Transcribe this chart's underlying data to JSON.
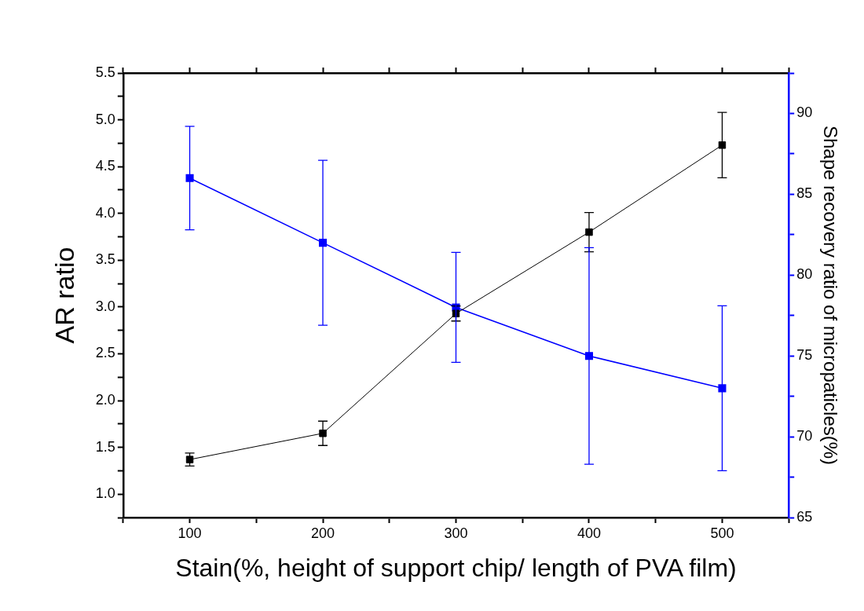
{
  "chart_data": {
    "type": "line",
    "xlabel": "Stain(%, height of support chip/ length of PVA film)",
    "ylabel": "AR ratio",
    "y2label": "Shape recovery ratio of micropaticles(%)",
    "x": [
      100,
      200,
      300,
      400,
      500
    ],
    "series": [
      {
        "color": "#000000",
        "values": [
          1.37,
          1.65,
          2.93,
          3.8,
          4.73
        ],
        "errors": [
          0.07,
          0.13,
          0.08,
          0.21,
          0.35
        ]
      },
      {
        "color": "#0000ff",
        "axis": "y2",
        "values": [
          86,
          82,
          78,
          75,
          73
        ],
        "errors": [
          3.2,
          5.1,
          3.4,
          6.7,
          5.1
        ]
      }
    ],
    "xlim": [
      50,
      550
    ],
    "xticks": [
      {
        "value": 50,
        "label": null
      },
      100,
      {
        "value": 150,
        "label": null
      },
      200,
      {
        "value": 250,
        "label": null
      },
      300,
      {
        "value": 350,
        "label": null
      },
      400,
      {
        "value": 450,
        "label": null
      },
      500,
      {
        "value": 550,
        "label": null
      }
    ],
    "ylim": [
      0.75,
      5.5
    ],
    "yticks": [
      {
        "value": 0.75,
        "label": null
      },
      {
        "value": 1.0,
        "label": "1.0"
      },
      {
        "value": 1.25,
        "label": null
      },
      {
        "value": 1.5,
        "label": "1.5"
      },
      {
        "value": 1.75,
        "label": null
      },
      {
        "value": 2.0,
        "label": "2.0"
      },
      {
        "value": 2.25,
        "label": null
      },
      {
        "value": 2.5,
        "label": "2.5"
      },
      {
        "value": 2.75,
        "label": null
      },
      {
        "value": 3.0,
        "label": "3.0"
      },
      {
        "value": 3.25,
        "label": null
      },
      {
        "value": 3.5,
        "label": "3.5"
      },
      {
        "value": 3.75,
        "label": null
      },
      {
        "value": 4.0,
        "label": "4.0"
      },
      {
        "value": 4.25,
        "label": null
      },
      {
        "value": 4.5,
        "label": "4.5"
      },
      {
        "value": 4.75,
        "label": null
      },
      {
        "value": 5.0,
        "label": "5.0"
      },
      {
        "value": 5.25,
        "label": null
      },
      {
        "value": 5.5,
        "label": "5.5"
      }
    ],
    "y2lim": [
      65,
      92.5
    ],
    "y2ticks": [
      65,
      {
        "value": 67.5,
        "label": null
      },
      70,
      {
        "value": 72.5,
        "label": null
      },
      75,
      {
        "value": 77.5,
        "label": null
      },
      80,
      {
        "value": 82.5,
        "label": null
      },
      85,
      {
        "value": 87.5,
        "label": null
      },
      90,
      {
        "value": 92.5,
        "label": null
      }
    ],
    "grid": false,
    "legend": false,
    "marker": "square",
    "line_style": "solid"
  }
}
